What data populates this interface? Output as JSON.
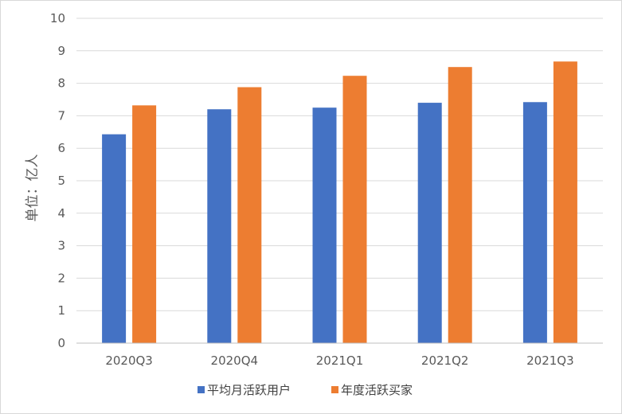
{
  "chart_data": {
    "type": "bar",
    "categories": [
      "2020Q3",
      "2020Q4",
      "2021Q1",
      "2021Q2",
      "2021Q3"
    ],
    "series": [
      {
        "name": "平均月活跃用户",
        "color": "#4472c4",
        "values": [
          6.43,
          7.2,
          7.25,
          7.4,
          7.42
        ]
      },
      {
        "name": "年度活跃买家",
        "color": "#ed7d31",
        "values": [
          7.32,
          7.88,
          8.23,
          8.5,
          8.67
        ]
      }
    ],
    "ylabel": "单位：亿人",
    "ylim": [
      0,
      10
    ],
    "yticks": [
      "0",
      "1",
      "2",
      "3",
      "4",
      "5",
      "6",
      "7",
      "8",
      "9",
      "10"
    ],
    "grid": true,
    "legend": "bottom"
  }
}
